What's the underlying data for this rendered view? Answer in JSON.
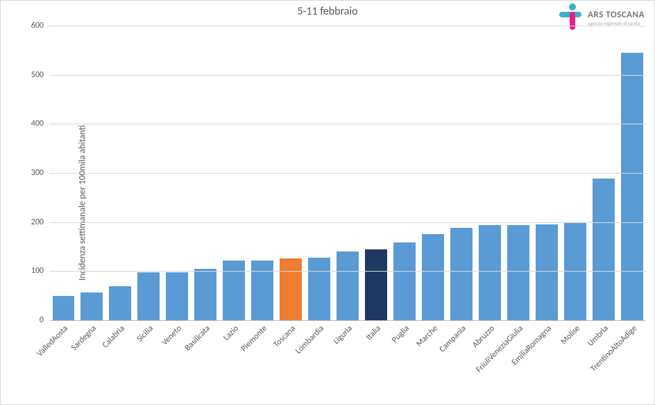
{
  "chart": {
    "type": "bar",
    "title": "5-11 febbraio",
    "title_fontsize": 16,
    "title_color": "#595959",
    "ylabel": "Incidenza settimanale per 100mila abitanti",
    "ylabel_fontsize": 13,
    "ylabel_color": "#595959",
    "ylim": [
      0,
      600
    ],
    "ytick_step": 100,
    "yticks": [
      0,
      100,
      200,
      300,
      400,
      500,
      600
    ],
    "tick_fontsize": 12,
    "tick_color": "#595959",
    "grid_color": "#d9d9d9",
    "axis_color": "#bfbfbf",
    "background_color": "#ffffff",
    "bar_width": 0.78,
    "default_bar_color": "#5b9bd5",
    "highlight_toscana_color": "#ed7d31",
    "highlight_italia_color": "#1f3864",
    "xlabel_rotation_deg": -45,
    "xlabel_fontsize": 12,
    "categories": [
      "ValledAosta",
      "Sardegna",
      "Calabria",
      "Sicilia",
      "Veneto",
      "Basilicata",
      "Lazio",
      "Piemonte",
      "Toscana",
      "Lombardia",
      "Liguria",
      "Italia",
      "Puglia",
      "Marche",
      "Campania",
      "Abruzzo",
      "FriuliVeneziaGiulia",
      "EmiliaRomagna",
      "Molise",
      "Umbria",
      "TrentinoAltoAdige"
    ],
    "values": [
      50,
      56,
      70,
      97,
      98,
      105,
      122,
      122,
      126,
      128,
      140,
      145,
      158,
      176,
      188,
      194,
      194,
      195,
      200,
      288,
      545
    ],
    "bar_colors": [
      "#5b9bd5",
      "#5b9bd5",
      "#5b9bd5",
      "#5b9bd5",
      "#5b9bd5",
      "#5b9bd5",
      "#5b9bd5",
      "#5b9bd5",
      "#ed7d31",
      "#5b9bd5",
      "#5b9bd5",
      "#1f3864",
      "#5b9bd5",
      "#5b9bd5",
      "#5b9bd5",
      "#5b9bd5",
      "#5b9bd5",
      "#5b9bd5",
      "#5b9bd5",
      "#5b9bd5",
      "#5b9bd5"
    ]
  },
  "logo": {
    "main_text": "ARS TOSCANA",
    "sub_text": "agenzia regionale di sanità",
    "main_fontsize": 13,
    "sub_fontsize": 7,
    "mark_colors": {
      "dot": "#35b6c4",
      "hbar": "#35b6c4",
      "vbar": "#e91e8c"
    }
  }
}
